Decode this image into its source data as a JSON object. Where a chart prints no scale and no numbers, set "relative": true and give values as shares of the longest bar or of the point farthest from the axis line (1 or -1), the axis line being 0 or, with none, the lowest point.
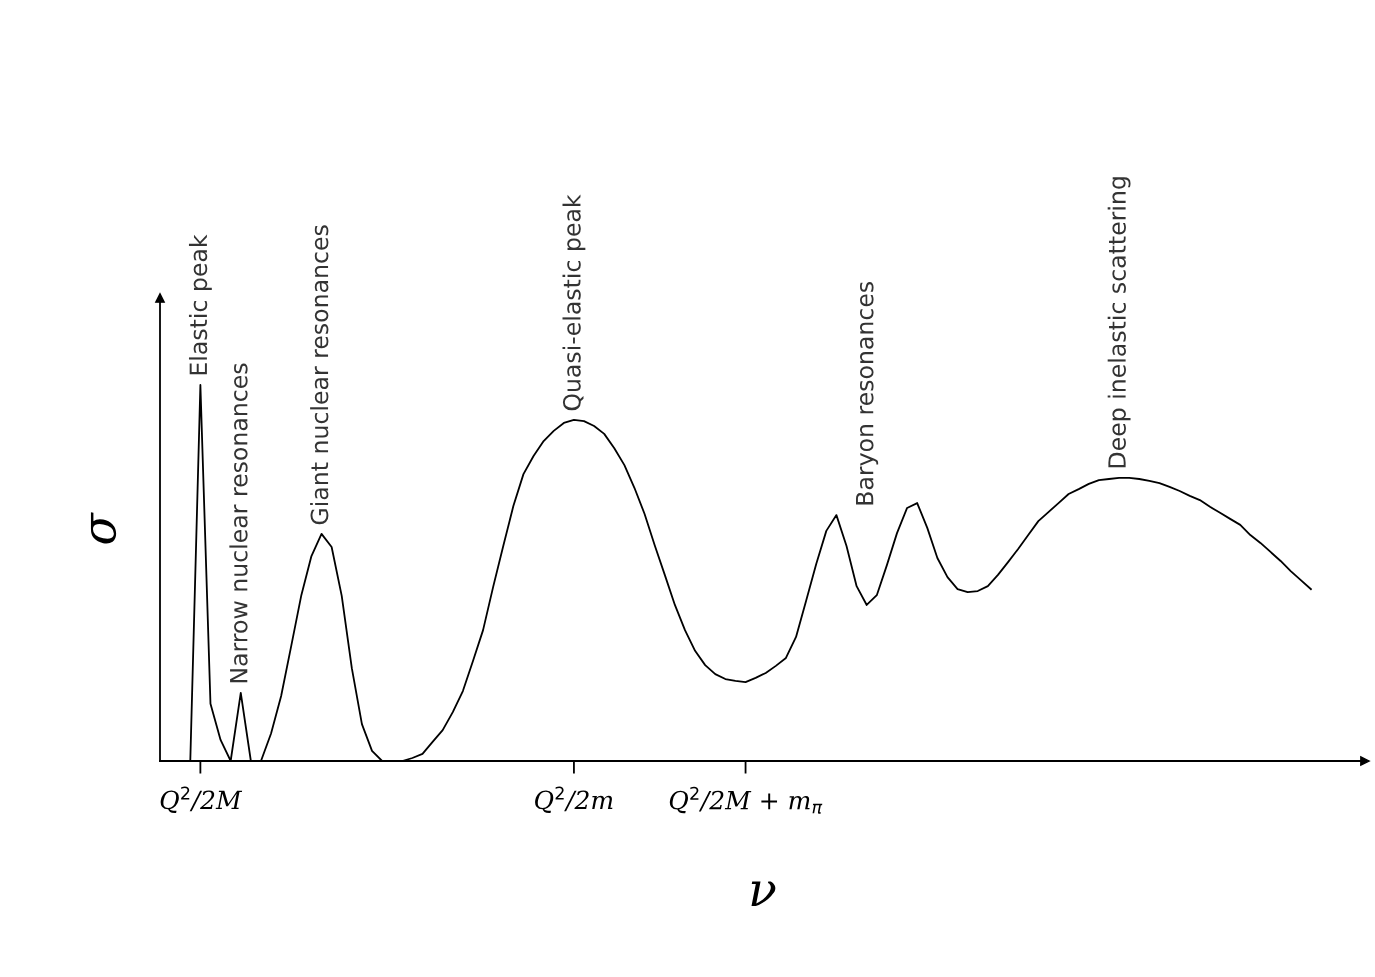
{
  "chart_data": {
    "type": "line",
    "relative": true,
    "xlabel": "ν",
    "ylabel": "σ",
    "color": "#000000",
    "categories": [
      null,
      null,
      null,
      null,
      "Q$^{2}$/2M",
      null,
      null,
      null,
      null,
      null,
      null,
      null,
      null,
      null,
      null,
      null,
      null,
      null,
      null,
      null,
      null,
      null,
      null,
      null,
      null,
      null,
      null,
      null,
      null,
      null,
      null,
      null,
      null,
      null,
      null,
      null,
      null,
      null,
      null,
      null,
      null,
      "Q$^{2}$/2m",
      null,
      null,
      null,
      null,
      null,
      null,
      null,
      null,
      null,
      null,
      null,
      null,
      null,
      null,
      null,
      null,
      "Q$^{2}$/2M + m$_{π}$",
      null,
      null,
      null,
      null,
      null,
      null,
      null,
      null,
      null,
      null,
      null,
      null,
      null,
      null,
      null,
      null,
      null,
      null,
      null,
      null,
      null,
      null,
      null,
      null,
      null,
      null,
      null,
      null,
      null,
      null,
      null,
      null,
      null,
      null,
      null,
      null,
      null,
      null,
      null,
      null,
      null,
      null,
      null,
      null,
      null,
      null,
      null,
      null,
      null,
      null,
      null,
      null,
      null,
      null,
      null,
      null,
      null,
      null,
      null,
      null,
      null
    ],
    "values": [
      null,
      null,
      null,
      0,
      1.0,
      0.152,
      0.056,
      0,
      0.181,
      0,
      0,
      0.073,
      0.173,
      0.306,
      0.441,
      0.545,
      0.604,
      0.569,
      0.439,
      0.247,
      0.098,
      0.027,
      0,
      0,
      0,
      0.008,
      0.019,
      0.051,
      0.082,
      0.13,
      0.186,
      0.266,
      0.348,
      0.463,
      0.572,
      0.678,
      0.763,
      0.811,
      0.851,
      0.878,
      0.899,
      0.907,
      0.904,
      0.891,
      0.87,
      0.832,
      0.787,
      0.726,
      0.657,
      0.574,
      0.495,
      0.415,
      0.348,
      0.293,
      0.255,
      0.231,
      0.218,
      0.213,
      0.21,
      0.221,
      0.234,
      0.253,
      0.274,
      0.33,
      0.426,
      0.524,
      0.612,
      0.654,
      0.572,
      0.465,
      0.415,
      0.441,
      0.521,
      0.606,
      0.673,
      0.686,
      0.62,
      0.54,
      0.489,
      0.457,
      0.449,
      0.452,
      0.465,
      0.495,
      0.529,
      0.564,
      0.601,
      0.638,
      0.662,
      0.686,
      0.71,
      0.723,
      0.737,
      0.747,
      0.75,
      0.753,
      0.753,
      0.75,
      0.745,
      0.739,
      0.729,
      0.718,
      0.705,
      0.694,
      0.676,
      0.66,
      0.644,
      0.628,
      0.601,
      0.58,
      0.556,
      0.532,
      0.505,
      0.481,
      0.457,
      null,
      null,
      null,
      null,
      null
    ],
    "annotations": [
      "Elastic peak",
      "Narrow nuclear resonances",
      "Giant nuclear resonances",
      "Quasi-elastic peak",
      "Baryon resonances",
      "Deep inelastic scattering"
    ]
  }
}
